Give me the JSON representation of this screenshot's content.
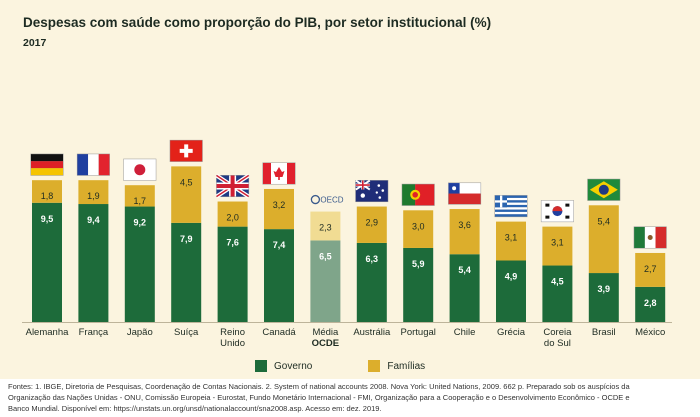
{
  "title": "Despesas com saúde como proporção do PIB, por setor institucional (%)",
  "subtitle": "2017",
  "colors": {
    "governo": "#1d6b3a",
    "familias": "#dcae2c",
    "media_governo": "#7fa58a",
    "media_familias": "#f1dc93"
  },
  "chart_data": {
    "type": "bar",
    "stacked": true,
    "categories": [
      "Alemanha",
      "França",
      "Japão",
      "Suíça",
      "Reino\nUnido",
      "Canadá",
      "Média\nOCDE",
      "Austrália",
      "Portugal",
      "Chile",
      "Grécia",
      "Coreia\ndo Sul",
      "Brasil",
      "México"
    ],
    "series": [
      {
        "name": "Governo",
        "values": [
          9.5,
          9.4,
          9.2,
          7.9,
          7.6,
          7.4,
          6.5,
          6.3,
          5.9,
          5.4,
          4.9,
          4.5,
          3.9,
          2.8
        ]
      },
      {
        "name": "Famílias",
        "values": [
          1.8,
          1.9,
          1.7,
          4.5,
          2.0,
          3.2,
          2.3,
          2.9,
          3.0,
          3.6,
          3.1,
          3.1,
          5.4,
          2.7
        ]
      }
    ],
    "value_labels": {
      "governo": [
        "9,5",
        "9,4",
        "9,2",
        "7,9",
        "7,6",
        "7,4",
        "6,5",
        "6,3",
        "5,9",
        "5,4",
        "4,9",
        "4,5",
        "3,9",
        "2,8"
      ],
      "familias": [
        "1,8",
        "1,9",
        "1,7",
        "4,5",
        "2,0",
        "3,2",
        "2,3",
        "2,9",
        "3,0",
        "3,6",
        "3,1",
        "3,1",
        "5,4",
        "2,7"
      ]
    },
    "flags": [
      "germany-flag",
      "france-flag",
      "japan-flag",
      "switzerland-flag",
      "uk-flag",
      "canada-flag",
      "oecd-logo",
      "australia-flag",
      "portugal-flag",
      "chile-flag",
      "greece-flag",
      "south-korea-flag",
      "brazil-flag",
      "mexico-flag"
    ],
    "oecd_logo_text": "OECD",
    "highlight_category": "Média OCDE",
    "legend_position": "bottom",
    "grid": false
  },
  "legend": {
    "governo": "Governo",
    "familias": "Famílias"
  },
  "footer": {
    "line1": "Fontes: 1. IBGE, Diretoria de Pesquisas, Coordenação de Contas Nacionais. 2. System of national accounts 2008. Nova York: United Nations, 2009. 662 p. Preparado sob os auspícios da",
    "line2": "Organização das Nações Unidas - ONU, Comissão Europeia - Eurostat, Fundo Monetário Internacional - FMI, Organização para a Cooperação e o Desenvolvimento Econômico - OCDE e",
    "line3": "Banco Mundial. Disponível em: https://unstats.un.org/unsd/nationalaccount/sna2008.asp. Acesso em: dez. 2019."
  }
}
